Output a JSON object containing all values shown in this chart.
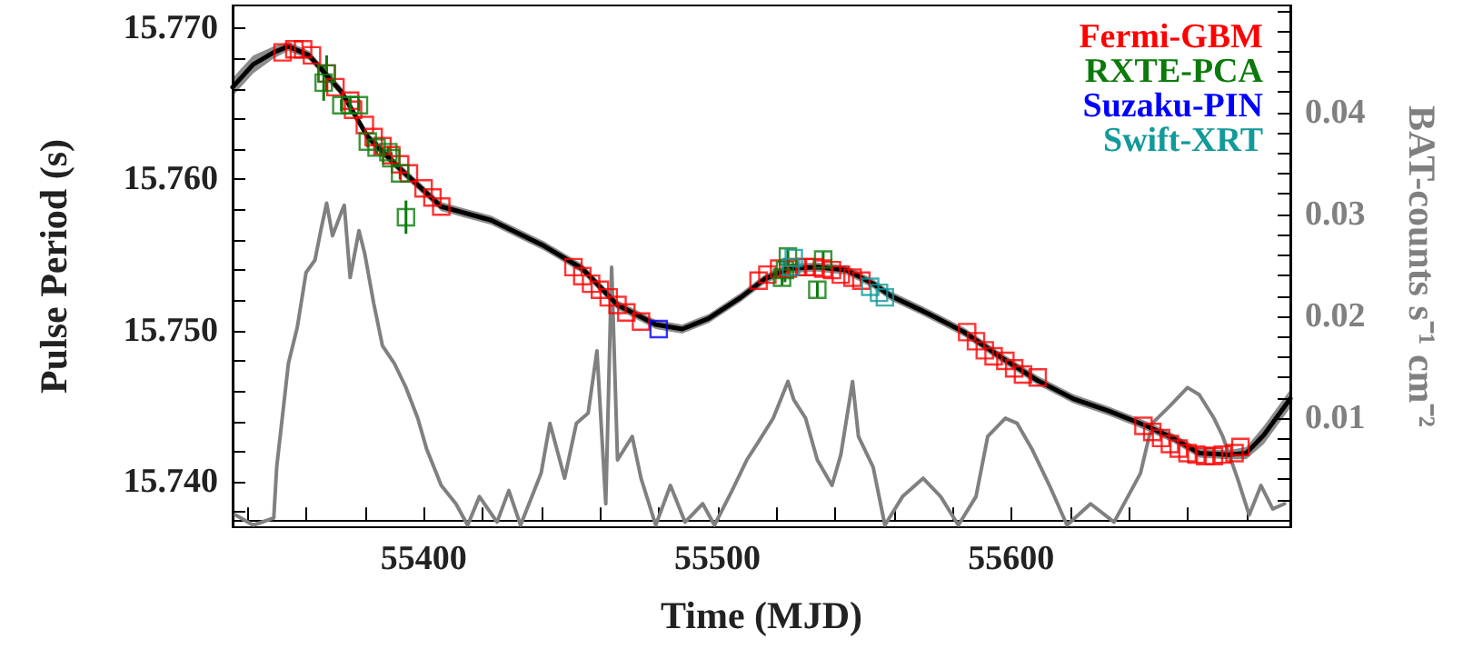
{
  "chart_data": {
    "type": "scatter",
    "xlabel": "Time (MJD)",
    "ylabel": "Pulse Period (s)",
    "y2label": "BAT-counts s⁻¹ cm⁻²",
    "xlim": [
      55335,
      55695
    ],
    "ylim": [
      15.737,
      15.7715
    ],
    "y2lim": [
      -0.0007,
      0.0505
    ],
    "xticks": [
      {
        "value": 55340,
        "label": null
      },
      {
        "value": 55360,
        "label": null
      },
      {
        "value": 55380,
        "label": null
      },
      55400,
      {
        "value": 55420,
        "label": null
      },
      {
        "value": 55440,
        "label": null
      },
      {
        "value": 55460,
        "label": null
      },
      {
        "value": 55480,
        "label": null
      },
      55500,
      {
        "value": 55520,
        "label": null
      },
      {
        "value": 55540,
        "label": null
      },
      {
        "value": 55560,
        "label": null
      },
      {
        "value": 55580,
        "label": null
      },
      55600,
      {
        "value": 55620,
        "label": null
      },
      {
        "value": 55640,
        "label": null
      },
      {
        "value": 55660,
        "label": null
      },
      {
        "value": 55680,
        "label": null
      }
    ],
    "yticks": [
      {
        "value": 15.738,
        "label": null
      },
      {
        "value": 15.74,
        "label": "15.740"
      },
      {
        "value": 15.742,
        "label": null
      },
      {
        "value": 15.744,
        "label": null
      },
      {
        "value": 15.746,
        "label": null
      },
      {
        "value": 15.748,
        "label": null
      },
      {
        "value": 15.75,
        "label": "15.750"
      },
      {
        "value": 15.752,
        "label": null
      },
      {
        "value": 15.754,
        "label": null
      },
      {
        "value": 15.756,
        "label": null
      },
      {
        "value": 15.758,
        "label": null
      },
      {
        "value": 15.76,
        "label": "15.760"
      },
      {
        "value": 15.762,
        "label": null
      },
      {
        "value": 15.764,
        "label": null
      },
      {
        "value": 15.766,
        "label": null
      },
      {
        "value": 15.768,
        "label": null
      },
      {
        "value": 15.77,
        "label": "15.770"
      }
    ],
    "y2ticks": [
      {
        "value": 0,
        "label": null
      },
      {
        "value": 0.002,
        "label": null
      },
      {
        "value": 0.004,
        "label": null
      },
      {
        "value": 0.006,
        "label": null
      },
      {
        "value": 0.008,
        "label": null
      },
      0.01,
      {
        "value": 0.012,
        "label": null
      },
      {
        "value": 0.014,
        "label": null
      },
      {
        "value": 0.016,
        "label": null
      },
      {
        "value": 0.018,
        "label": null
      },
      0.02,
      {
        "value": 0.022,
        "label": null
      },
      {
        "value": 0.024,
        "label": null
      },
      {
        "value": 0.026,
        "label": null
      },
      {
        "value": 0.028,
        "label": null
      },
      0.03,
      {
        "value": 0.032,
        "label": null
      },
      {
        "value": 0.034,
        "label": null
      },
      {
        "value": 0.036,
        "label": null
      },
      {
        "value": 0.038,
        "label": null
      },
      0.04,
      {
        "value": 0.042,
        "label": null
      },
      {
        "value": 0.044,
        "label": null
      },
      {
        "value": 0.046,
        "label": null
      },
      {
        "value": 0.048,
        "label": null
      },
      {
        "value": 0.05,
        "label": null
      }
    ],
    "legend": "top right",
    "series": [
      {
        "type": "line",
        "axis": "y2",
        "color": "#808080",
        "line_style": "solid",
        "x": [
          55336,
          55342,
          55349,
          55350,
          55354,
          55357,
          55360,
          55363,
          55365,
          55367,
          55369,
          55372,
          55373,
          55375,
          55378,
          55380,
          55383,
          55386,
          55390,
          55394,
          55398,
          55401,
          55406,
          55411,
          55415,
          55419,
          55425,
          55429,
          55433,
          55440,
          55443,
          55448,
          55452,
          55456,
          55459,
          55462,
          55464,
          55466,
          55471,
          55474,
          55479,
          55484,
          55489,
          55495,
          55499,
          55505,
          55510,
          55514,
          55519,
          55524,
          55526,
          55530,
          55534,
          55539,
          55542,
          55546,
          55548,
          55553,
          55557,
          55563,
          55570,
          55576,
          55582,
          55588,
          55592,
          55598,
          55602,
          55607,
          55613,
          55619,
          55627,
          55635,
          55644,
          55648,
          55654,
          55660,
          55664,
          55669,
          55672,
          55677,
          55681,
          55685,
          55689,
          55693
        ],
        "values": [
          0.0005,
          -0.0005,
          0.0002,
          0.0052,
          0.0154,
          0.0189,
          0.0243,
          0.0255,
          0.0284,
          0.0311,
          0.0279,
          0.0302,
          0.0309,
          0.0238,
          0.0284,
          0.0261,
          0.0213,
          0.0171,
          0.0154,
          0.013,
          0.01,
          0.007,
          0.0034,
          0.0016,
          -0.0005,
          0.0023,
          -0.0002,
          0.0029,
          -0.0005,
          0.0046,
          0.0095,
          0.0041,
          0.0095,
          0.0105,
          0.0166,
          0.0016,
          0.0248,
          0.0059,
          0.0082,
          0.0041,
          -0.0005,
          0.0034,
          -0.0002,
          0.0016,
          -0.0005,
          0.0029,
          0.0059,
          0.0077,
          0.01,
          0.0136,
          0.0118,
          0.01,
          0.0059,
          0.0034,
          0.0064,
          0.0136,
          0.0082,
          0.0052,
          -0.0005,
          0.0023,
          0.0041,
          0.0023,
          -0.0005,
          0.0023,
          0.0082,
          0.01,
          0.0095,
          0.007,
          0.0034,
          -0.0005,
          0.0016,
          -0.0002,
          0.0046,
          0.0095,
          0.0112,
          0.013,
          0.0123,
          0.01,
          0.0082,
          0.0041,
          0.0005,
          0.0034,
          0.0011,
          0.0016
        ]
      },
      {
        "type": "line",
        "color": "#000000",
        "line_style": "solid",
        "x": [
          55335,
          55342,
          55349,
          55354,
          55361,
          55372,
          55381,
          55392,
          55406,
          55423,
          55441,
          55454,
          55466,
          55479,
          55488,
          55497,
          55508,
          55516,
          55524,
          55534,
          55544,
          55553,
          55559,
          55572,
          55584,
          55596,
          55609,
          55621,
          55633,
          55646,
          55655,
          55664,
          55674,
          55680,
          55686,
          55695
        ],
        "values": [
          15.7661,
          15.7676,
          15.7684,
          15.7688,
          15.7682,
          15.7658,
          15.7628,
          15.7607,
          15.7582,
          15.7573,
          15.7556,
          15.7541,
          15.7517,
          15.7504,
          15.7501,
          15.7508,
          15.7522,
          15.7534,
          15.7541,
          15.7542,
          15.754,
          15.7531,
          15.7523,
          15.7511,
          15.7499,
          15.7483,
          15.7467,
          15.7455,
          15.7447,
          15.7437,
          15.7429,
          15.7419,
          15.7418,
          15.7419,
          15.7431,
          15.7455
        ],
        "lower": [
          15.7655,
          15.767,
          15.768,
          15.7685,
          15.7679,
          15.7655,
          15.7625,
          15.7604,
          15.7579,
          15.757,
          15.7553,
          15.7538,
          15.7514,
          15.7501,
          15.7498,
          15.7505,
          15.7519,
          15.7531,
          15.7538,
          15.7539,
          15.7537,
          15.7528,
          15.752,
          15.7508,
          15.7496,
          15.748,
          15.7464,
          15.7452,
          15.7444,
          15.7434,
          15.7426,
          15.7416,
          15.7415,
          15.7415,
          15.7425,
          15.7449
        ],
        "upper": [
          15.7667,
          15.7682,
          15.7688,
          15.7691,
          15.7685,
          15.7661,
          15.7631,
          15.761,
          15.7585,
          15.7576,
          15.7559,
          15.7544,
          15.752,
          15.7507,
          15.7504,
          15.7511,
          15.7525,
          15.7537,
          15.7544,
          15.7545,
          15.7543,
          15.7534,
          15.7526,
          15.7514,
          15.7502,
          15.7486,
          15.747,
          15.7458,
          15.745,
          15.744,
          15.7432,
          15.7422,
          15.7421,
          15.7423,
          15.7437,
          15.7461
        ]
      },
      {
        "name": "Fermi-GBM",
        "color": "#ff0000",
        "marker": "square",
        "x": [
          55352,
          55356,
          55359,
          55362,
          55367,
          55370,
          55375,
          55376,
          55380,
          55383,
          55386,
          55389,
          55392,
          55395,
          55400,
          55403,
          55406,
          55451,
          55454,
          55457,
          55460,
          55463,
          55466,
          55469,
          55474,
          55514,
          55517,
          55521,
          55524,
          55527,
          55530,
          55533,
          55536,
          55539,
          55542,
          55546,
          55549,
          55585,
          55588,
          55591,
          55594,
          55598,
          55601,
          55604,
          55609,
          55645,
          55648,
          55651,
          55654,
          55657,
          55660,
          55663,
          55666,
          55669,
          55672,
          55676,
          55678
        ],
        "values": [
          15.7684,
          15.7686,
          15.7686,
          15.7682,
          15.767,
          15.7661,
          15.7652,
          15.7646,
          15.7636,
          15.7628,
          15.7622,
          15.7616,
          15.761,
          15.7604,
          15.7594,
          15.7588,
          15.7582,
          15.7542,
          15.7536,
          15.7531,
          15.7527,
          15.7522,
          15.7517,
          15.7512,
          15.7506,
          15.7533,
          15.7537,
          15.7541,
          15.7541,
          15.7542,
          15.7542,
          15.7542,
          15.7541,
          15.754,
          15.7537,
          15.7535,
          15.7533,
          15.7499,
          15.7493,
          15.7487,
          15.7483,
          15.748,
          15.7475,
          15.7471,
          15.7469,
          15.7437,
          15.7433,
          15.7429,
          15.7425,
          15.7422,
          15.7419,
          15.7418,
          15.7417,
          15.7417,
          15.7418,
          15.7419,
          15.7423
        ]
      },
      {
        "name": "RXTE-PCA",
        "color": "#0b7a0b",
        "marker": "square",
        "x": [
          55367,
          55366,
          55372,
          55375,
          55378,
          55381,
          55384,
          55388,
          55389,
          55392,
          55394,
          55522,
          55523,
          55524,
          55534,
          55536
        ],
        "values": [
          15.767,
          15.7664,
          15.7649,
          15.7649,
          15.7649,
          15.7625,
          15.7621,
          15.7618,
          15.7614,
          15.7604,
          15.7575,
          15.7535,
          15.754,
          15.7549,
          15.7527,
          15.7547
        ],
        "errors": [
          0.0012,
          0.0012,
          0.0004,
          0.0004,
          0.0004,
          0.0004,
          0.0004,
          0.0004,
          0.0004,
          0.0004,
          0.0011,
          0.0005,
          0.0008,
          0.0005,
          0.0005,
          0.0005
        ]
      },
      {
        "name": "Suzaku-PIN",
        "color": "#0000ff",
        "marker": "square",
        "x": [
          55480
        ],
        "values": [
          15.7501
        ]
      },
      {
        "name": "Swift-XRT",
        "color": "#129a9a",
        "marker": "square",
        "x": [
          55525,
          55526,
          55552,
          55555,
          55557
        ],
        "values": [
          15.7542,
          15.7548,
          15.7529,
          15.7525,
          15.7522
        ]
      }
    ]
  }
}
